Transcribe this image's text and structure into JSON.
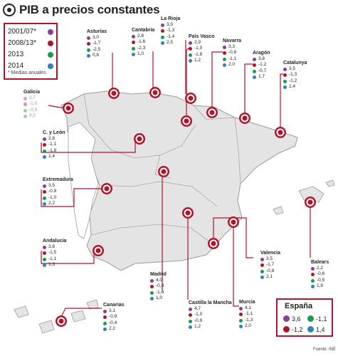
{
  "title": "PIB a precios constantes",
  "colors": {
    "2001/07*": "#8a3c99",
    "2008/13*": "#b0142a",
    "2013": "#1a9a50",
    "2014": "#2f7fc1",
    "accent": "#b0142a",
    "land": "#e4e4e4",
    "border": "#9c9c9c"
  },
  "legend": {
    "periods": [
      "2001/07*",
      "2008/13*",
      "2013",
      "2014"
    ],
    "note": "* Medias anuales"
  },
  "regions": [
    {
      "name": "Asturias",
      "values": [
        "3,0",
        "-1,7",
        "-2,5",
        "0,8"
      ]
    },
    {
      "name": "Cantabria",
      "values": [
        "2,8",
        "-1,6",
        "-2,3",
        "1,0"
      ]
    },
    {
      "name": "La Rioja",
      "values": [
        "3,5",
        "-1,3",
        "-1,4",
        "2,5"
      ]
    },
    {
      "name": "País Vasco",
      "values": [
        "2,9",
        "-1,0",
        "-1,8",
        "1,2"
      ]
    },
    {
      "name": "Navarra",
      "values": [
        "3,3",
        "-0,8",
        "-1,1",
        "2,0"
      ]
    },
    {
      "name": "Aragón",
      "values": [
        "3,8",
        "-1,2",
        "-0,7",
        "1,7"
      ]
    },
    {
      "name": "Catalunya",
      "values": [
        "3,5",
        "-1,3",
        "-1,2",
        "1,4"
      ]
    },
    {
      "name": "Galicia",
      "values": [
        "3,7",
        "-1,0",
        "-0,9",
        "0,5"
      ]
    },
    {
      "name": "C. y León",
      "values": [
        "2,8",
        "-1,1",
        "-1,8",
        "1,4"
      ]
    },
    {
      "name": "Extremadura",
      "values": [
        "3,5",
        "-0,9",
        "-1,0",
        "2,2"
      ]
    },
    {
      "name": "Andalucía",
      "values": [
        "3,8",
        "-1,5",
        "-1,1",
        "1,3"
      ]
    },
    {
      "name": "Valencia",
      "values": [
        "3,5",
        "-1,7",
        "-0,8",
        "2,1"
      ]
    },
    {
      "name": "Balears",
      "values": [
        "2,2",
        "-0,6",
        "-0,5",
        "1,9"
      ]
    },
    {
      "name": "Madrid",
      "values": [
        "4,0",
        "-0,3",
        "-1,6",
        "1,0"
      ]
    },
    {
      "name": "Castilla la Mancha",
      "values": [
        "4,7",
        "-1,0",
        "-0,9",
        "1,2"
      ]
    },
    {
      "name": "Murcia",
      "values": [
        "4,1",
        "-1,1",
        "-1,3",
        "2,0"
      ]
    },
    {
      "name": "Canarias",
      "values": [
        "3,1",
        "-0,9",
        "-0,4",
        "2,2"
      ]
    }
  ],
  "espana": {
    "title": "España",
    "values": [
      "3,6",
      "-1,2",
      "-1,1",
      "1,4"
    ]
  },
  "source": "Fuente: INE"
}
